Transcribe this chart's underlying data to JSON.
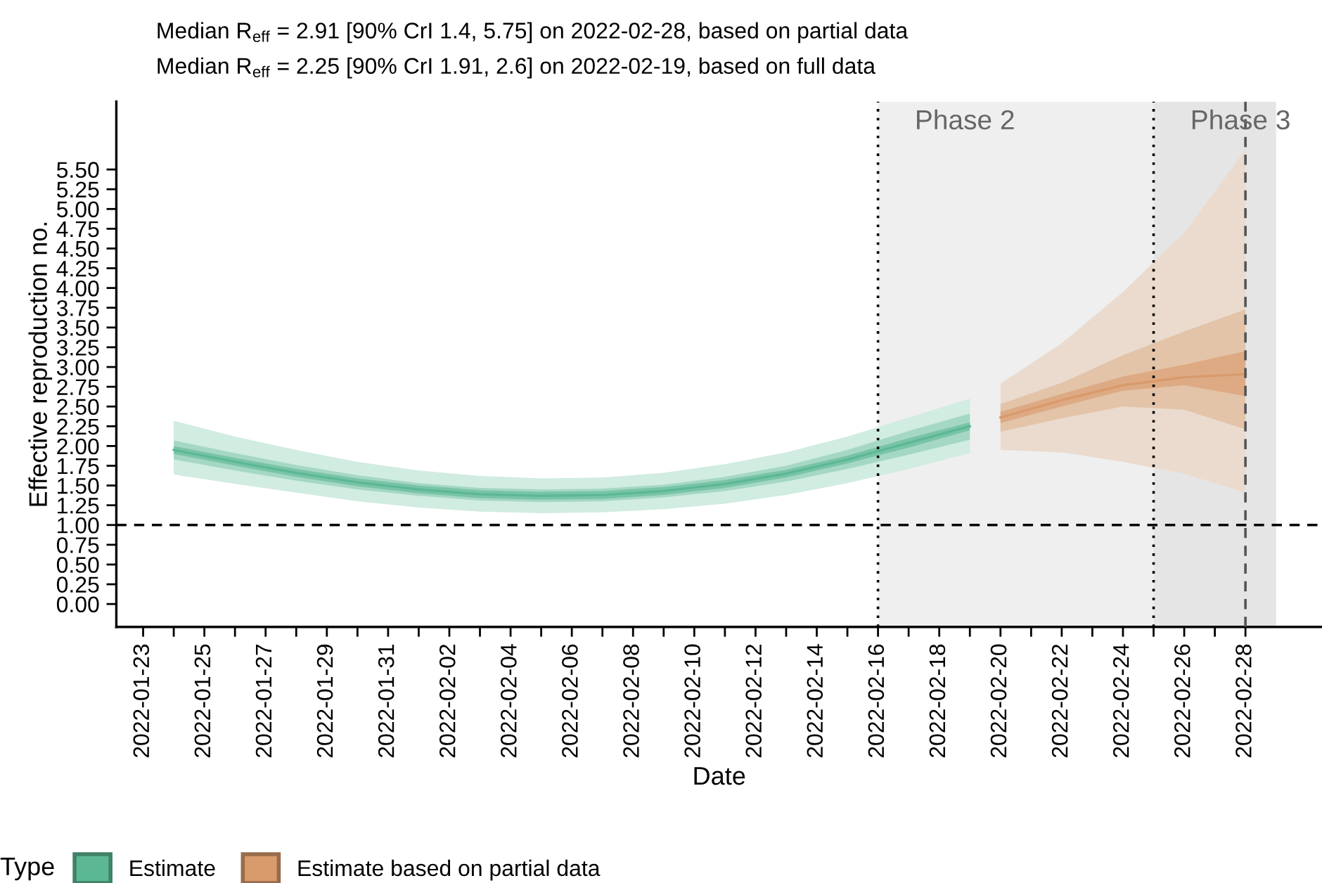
{
  "chart_data": {
    "type": "line",
    "title": "Median R$_{eff}$ = 2.91 [90% CrI 1.4, 5.75] on 2022-02-28, based on partial data",
    "subtitle": "Median R$_{eff}$ = 2.25 [90% CrI 1.91, 2.6] on 2022-02-19, based on full data",
    "xlabel": "Date",
    "ylabel": "Effective reproduction no.",
    "legend_title": "Type",
    "series": [
      {
        "color": "#d1ece1",
        "x": [
          "2022-01-24",
          "2022-01-26",
          "2022-01-28",
          "2022-01-30",
          "2022-02-01",
          "2022-02-03",
          "2022-02-05",
          "2022-02-07",
          "2022-02-09",
          "2022-02-11",
          "2022-02-13",
          "2022-02-15",
          "2022-02-17",
          "2022-02-19"
        ],
        "values": [
          null,
          null,
          null,
          null,
          null,
          null,
          null,
          null,
          null,
          null,
          null,
          null,
          null,
          null
        ],
        "lower": [
          1.64,
          1.52,
          1.41,
          1.3,
          1.22,
          1.17,
          1.15,
          1.16,
          1.2,
          1.27,
          1.38,
          1.53,
          1.71,
          1.91
        ],
        "upper": [
          2.32,
          2.12,
          1.95,
          1.8,
          1.69,
          1.62,
          1.59,
          1.6,
          1.66,
          1.77,
          1.92,
          2.12,
          2.36,
          2.6
        ]
      },
      {
        "color": "#a5d8c4",
        "x": [
          "2022-01-24",
          "2022-01-26",
          "2022-01-28",
          "2022-01-30",
          "2022-02-01",
          "2022-02-03",
          "2022-02-05",
          "2022-02-07",
          "2022-02-09",
          "2022-02-11",
          "2022-02-13",
          "2022-02-15",
          "2022-02-17",
          "2022-02-19"
        ],
        "values": [
          null,
          null,
          null,
          null,
          null,
          null,
          null,
          null,
          null,
          null,
          null,
          null,
          null,
          null
        ],
        "lower": [
          1.83,
          1.69,
          1.56,
          1.45,
          1.37,
          1.31,
          1.29,
          1.3,
          1.35,
          1.43,
          1.55,
          1.71,
          1.89,
          2.08
        ],
        "upper": [
          2.07,
          1.91,
          1.76,
          1.63,
          1.53,
          1.47,
          1.45,
          1.46,
          1.51,
          1.61,
          1.75,
          1.95,
          2.19,
          2.41
        ]
      },
      {
        "name": "Estimate",
        "color": "#5cb894",
        "x": [
          "2022-01-24",
          "2022-01-26",
          "2022-01-28",
          "2022-01-30",
          "2022-02-01",
          "2022-02-03",
          "2022-02-05",
          "2022-02-07",
          "2022-02-09",
          "2022-02-11",
          "2022-02-13",
          "2022-02-15",
          "2022-02-17",
          "2022-02-19"
        ],
        "values": [
          1.95,
          1.8,
          1.66,
          1.54,
          1.45,
          1.39,
          1.37,
          1.38,
          1.43,
          1.52,
          1.65,
          1.83,
          2.04,
          2.25
        ],
        "lower": [
          1.9,
          1.75,
          1.61,
          1.49,
          1.4,
          1.34,
          1.32,
          1.33,
          1.38,
          1.47,
          1.6,
          1.78,
          1.98,
          2.2
        ],
        "upper": [
          2.0,
          1.85,
          1.71,
          1.59,
          1.5,
          1.44,
          1.42,
          1.43,
          1.48,
          1.57,
          1.7,
          1.88,
          2.1,
          2.3
        ]
      },
      {
        "color": "#eadbce",
        "x": [
          "2022-02-20",
          "2022-02-22",
          "2022-02-24",
          "2022-02-26",
          "2022-02-28"
        ],
        "values": [
          null,
          null,
          null,
          null,
          null
        ],
        "lower": [
          1.95,
          1.92,
          1.8,
          1.65,
          1.41
        ],
        "upper": [
          2.79,
          3.3,
          3.95,
          4.7,
          5.75
        ]
      },
      {
        "color": "#e3c4a9",
        "x": [
          "2022-02-20",
          "2022-02-22",
          "2022-02-24",
          "2022-02-26",
          "2022-02-28"
        ],
        "values": [
          null,
          null,
          null,
          null,
          null
        ],
        "lower": [
          2.18,
          2.35,
          2.5,
          2.46,
          2.21
        ],
        "upper": [
          2.53,
          2.8,
          3.15,
          3.45,
          3.73
        ]
      },
      {
        "name": "Estimate based on partial data",
        "color": "#d99a6c",
        "x": [
          "2022-02-20",
          "2022-02-22",
          "2022-02-24",
          "2022-02-26",
          "2022-02-28"
        ],
        "values": [
          2.36,
          2.58,
          2.77,
          2.87,
          2.91
        ],
        "lower": [
          2.29,
          2.5,
          2.7,
          2.77,
          2.63
        ],
        "upper": [
          2.43,
          2.66,
          2.88,
          3.03,
          3.2
        ]
      }
    ],
    "xlim": [
      "2022-01-22T03:00",
      "2022-03-02T12:00"
    ],
    "xticks": [
      {
        "value": "2022-01-23",
        "label": "2022-01-23"
      },
      {
        "value": "2022-01-24",
        "label": null
      },
      {
        "value": "2022-01-25",
        "label": "2022-01-25"
      },
      {
        "value": "2022-01-26",
        "label": null
      },
      {
        "value": "2022-01-27",
        "label": "2022-01-27"
      },
      {
        "value": "2022-01-28",
        "label": null
      },
      {
        "value": "2022-01-29",
        "label": "2022-01-29"
      },
      {
        "value": "2022-01-30",
        "label": null
      },
      {
        "value": "2022-01-31",
        "label": "2022-01-31"
      },
      {
        "value": "2022-02-01",
        "label": null
      },
      {
        "value": "2022-02-02",
        "label": "2022-02-02"
      },
      {
        "value": "2022-02-03",
        "label": null
      },
      {
        "value": "2022-02-04",
        "label": "2022-02-04"
      },
      {
        "value": "2022-02-05",
        "label": null
      },
      {
        "value": "2022-02-06",
        "label": "2022-02-06"
      },
      {
        "value": "2022-02-07",
        "label": null
      },
      {
        "value": "2022-02-08",
        "label": "2022-02-08"
      },
      {
        "value": "2022-02-09",
        "label": null
      },
      {
        "value": "2022-02-10",
        "label": "2022-02-10"
      },
      {
        "value": "2022-02-11",
        "label": null
      },
      {
        "value": "2022-02-12",
        "label": "2022-02-12"
      },
      {
        "value": "2022-02-13",
        "label": null
      },
      {
        "value": "2022-02-14",
        "label": "2022-02-14"
      },
      {
        "value": "2022-02-15",
        "label": null
      },
      {
        "value": "2022-02-16",
        "label": "2022-02-16"
      },
      {
        "value": "2022-02-17",
        "label": null
      },
      {
        "value": "2022-02-18",
        "label": "2022-02-18"
      },
      {
        "value": "2022-02-19",
        "label": null
      },
      {
        "value": "2022-02-20",
        "label": "2022-02-20"
      },
      {
        "value": "2022-02-21",
        "label": null
      },
      {
        "value": "2022-02-22",
        "label": "2022-02-22"
      },
      {
        "value": "2022-02-23",
        "label": null
      },
      {
        "value": "2022-02-24",
        "label": "2022-02-24"
      },
      {
        "value": "2022-02-25",
        "label": null
      },
      {
        "value": "2022-02-26",
        "label": "2022-02-26"
      },
      {
        "value": "2022-02-27",
        "label": null
      },
      {
        "value": "2022-02-28",
        "label": "2022-02-28"
      }
    ],
    "ylim": [
      -0.29,
      6.36
    ],
    "yticks": [
      {
        "value": 0,
        "label": "0.00"
      },
      {
        "value": 0.25,
        "label": "0.25"
      },
      {
        "value": 0.5,
        "label": "0.50"
      },
      {
        "value": 0.75,
        "label": "0.75"
      },
      {
        "value": 1,
        "label": "1.00"
      },
      {
        "value": 1.25,
        "label": "1.25"
      },
      {
        "value": 1.5,
        "label": "1.50"
      },
      {
        "value": 1.75,
        "label": "1.75"
      },
      {
        "value": 2,
        "label": "2.00"
      },
      {
        "value": 2.25,
        "label": "2.25"
      },
      {
        "value": 2.5,
        "label": "2.50"
      },
      {
        "value": 2.75,
        "label": "2.75"
      },
      {
        "value": 3,
        "label": "3.00"
      },
      {
        "value": 3.25,
        "label": "3.25"
      },
      {
        "value": 3.5,
        "label": "3.50"
      },
      {
        "value": 3.75,
        "label": "3.75"
      },
      {
        "value": 4,
        "label": "4.00"
      },
      {
        "value": 4.25,
        "label": "4.25"
      },
      {
        "value": 4.5,
        "label": "4.50"
      },
      {
        "value": 4.75,
        "label": "4.75"
      },
      {
        "value": 5,
        "label": "5.00"
      },
      {
        "value": 5.25,
        "label": "5.25"
      },
      {
        "value": 5.5,
        "label": "5.50"
      }
    ],
    "bands": [
      {
        "axis": "x",
        "from": "2022-02-16",
        "to": "2022-02-25",
        "label": "Phase 2",
        "color": "#efefef"
      },
      {
        "axis": "x",
        "from": "2022-02-25",
        "to": "2022-03-01",
        "label": "Phase 3",
        "color": "#e5e5e5"
      }
    ],
    "ref_lines": [
      {
        "axis": "y",
        "value": 1,
        "color": "#000000",
        "line_style": "dashed"
      },
      {
        "axis": "x",
        "value": "2022-02-16",
        "color": "#000000",
        "line_style": "dotted"
      },
      {
        "axis": "x",
        "value": "2022-02-25",
        "color": "#000000",
        "line_style": "dotted"
      },
      {
        "axis": "x",
        "value": "2022-02-28",
        "color": "#555555",
        "line_style": "dashed"
      }
    ],
    "legend": "bottom left"
  }
}
